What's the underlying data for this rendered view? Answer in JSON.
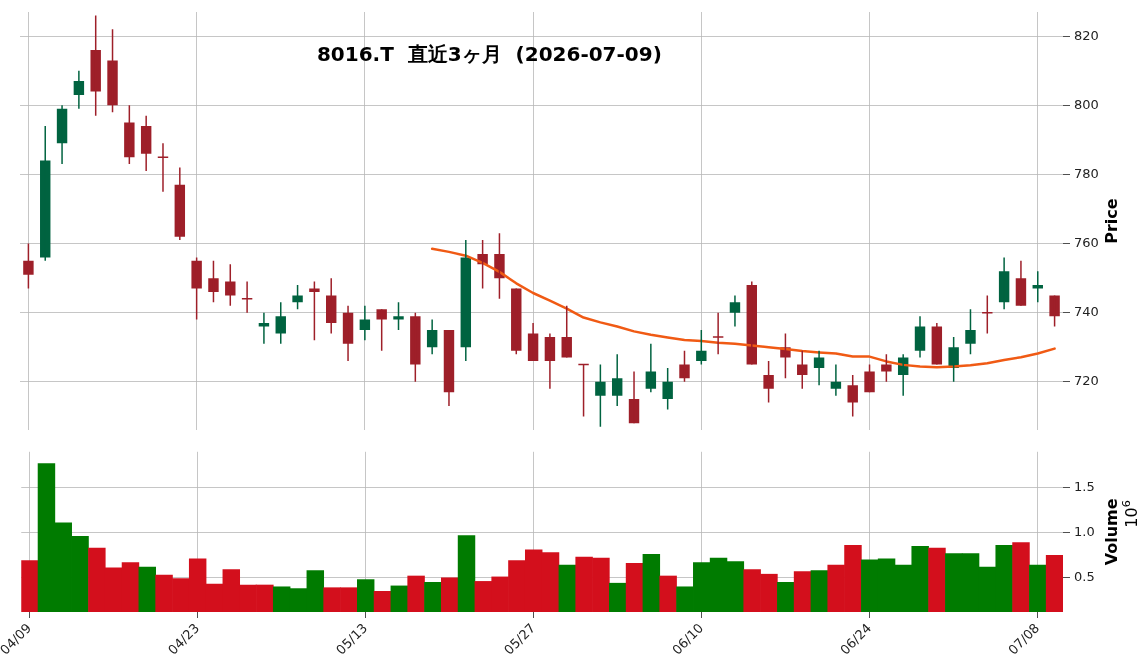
{
  "chart_data": [
    {
      "type": "candlestick",
      "title": "8016.T  直近3ヶ月  (2026-07-09)",
      "ylabel": "Price",
      "tick_labels": "y",
      "grid": true,
      "categories": [
        null,
        null,
        null,
        null,
        null,
        null,
        null,
        null,
        null,
        null,
        null,
        null,
        null,
        null,
        null,
        null,
        null,
        null,
        null,
        null,
        null,
        null,
        null,
        null,
        null,
        null,
        null,
        null,
        null,
        null,
        null,
        null,
        null,
        null,
        null,
        null,
        null,
        null,
        null,
        null,
        null,
        null,
        null,
        null,
        null,
        null,
        null,
        null,
        null,
        null,
        null,
        null,
        null,
        null,
        null,
        null,
        null,
        null,
        null,
        null,
        null,
        null
      ],
      "ohlc": [
        [
          755,
          760,
          747,
          751
        ],
        [
          756,
          794,
          755,
          784
        ],
        [
          789,
          800,
          783,
          799
        ],
        [
          803,
          810,
          799,
          807
        ],
        [
          816,
          826,
          797,
          804
        ],
        [
          813,
          822,
          798,
          800
        ],
        [
          795,
          800,
          783,
          785
        ],
        [
          794,
          797,
          781,
          786
        ],
        [
          785,
          789,
          775,
          785
        ],
        [
          777,
          782,
          761,
          762
        ],
        [
          755,
          756,
          738,
          747
        ],
        [
          750,
          755,
          743,
          746
        ],
        [
          749,
          754,
          742,
          745
        ],
        [
          744,
          749,
          740,
          744
        ],
        [
          736,
          740,
          731,
          737
        ],
        [
          734,
          743,
          731,
          739
        ],
        [
          743,
          748,
          741,
          745
        ],
        [
          747,
          749,
          732,
          746
        ],
        [
          745,
          750,
          734,
          737
        ],
        [
          740,
          742,
          726,
          731
        ],
        [
          735,
          742,
          732,
          738
        ],
        [
          741,
          741,
          729,
          738
        ],
        [
          738,
          743,
          735,
          739
        ],
        [
          739,
          740,
          720,
          725
        ],
        [
          730,
          738,
          728,
          735
        ],
        [
          735,
          735,
          713,
          717
        ],
        [
          730,
          761,
          726,
          756
        ],
        [
          757,
          761,
          747,
          754
        ],
        [
          757,
          763,
          744,
          750
        ],
        [
          747,
          747,
          728,
          729
        ],
        [
          734,
          737,
          726,
          726
        ],
        [
          733,
          734,
          718,
          726
        ],
        [
          733,
          742,
          727,
          727
        ],
        [
          725,
          725,
          710,
          725
        ],
        [
          716,
          725,
          707,
          720
        ],
        [
          716,
          728,
          713,
          721
        ],
        [
          715,
          723,
          708,
          708
        ],
        [
          718,
          731,
          717,
          723
        ],
        [
          715,
          724,
          712,
          720
        ],
        [
          725,
          729,
          720,
          721
        ],
        [
          726,
          735,
          725,
          729
        ],
        [
          733,
          740,
          728,
          733
        ],
        [
          740,
          745,
          736,
          743
        ],
        [
          748,
          749,
          725,
          725
        ],
        [
          722,
          726,
          714,
          718
        ],
        [
          730,
          734,
          721,
          727
        ],
        [
          725,
          729,
          718,
          722
        ],
        [
          724,
          729,
          719,
          727
        ],
        [
          718,
          725,
          716,
          720
        ],
        [
          719,
          722,
          710,
          714
        ],
        [
          723,
          725,
          717,
          717
        ],
        [
          725,
          728,
          720,
          723
        ],
        [
          722,
          728,
          716,
          727
        ],
        [
          729,
          739,
          727,
          736
        ],
        [
          736,
          737,
          725,
          725
        ],
        [
          724,
          733,
          720,
          730
        ],
        [
          731,
          741,
          728,
          735
        ],
        [
          740,
          745,
          734,
          740
        ],
        [
          743,
          756,
          741,
          752
        ],
        [
          750,
          755,
          742,
          742
        ],
        [
          747,
          752,
          743,
          748
        ],
        [
          745,
          745,
          736,
          739
        ]
      ],
      "colors": [
        "#9e1f29",
        "#006340",
        "#006340",
        "#006340",
        "#9e1f29",
        "#9e1f29",
        "#9e1f29",
        "#9e1f29",
        "#9e1f29",
        "#9e1f29",
        "#9e1f29",
        "#9e1f29",
        "#9e1f29",
        "#9e1f29",
        "#006340",
        "#006340",
        "#006340",
        "#9e1f29",
        "#9e1f29",
        "#9e1f29",
        "#006340",
        "#9e1f29",
        "#006340",
        "#9e1f29",
        "#006340",
        "#9e1f29",
        "#006340",
        "#9e1f29",
        "#9e1f29",
        "#9e1f29",
        "#9e1f29",
        "#9e1f29",
        "#9e1f29",
        "#9e1f29",
        "#006340",
        "#006340",
        "#9e1f29",
        "#006340",
        "#006340",
        "#9e1f29",
        "#006340",
        "#9e1f29",
        "#006340",
        "#9e1f29",
        "#9e1f29",
        "#9e1f29",
        "#9e1f29",
        "#006340",
        "#006340",
        "#9e1f29",
        "#9e1f29",
        "#9e1f29",
        "#006340",
        "#006340",
        "#9e1f29",
        "#006340",
        "#006340",
        "#9e1f29",
        "#006340",
        "#9e1f29",
        "#006340",
        "#9e1f29"
      ],
      "series": [
        {
          "type": "line",
          "color": "#f05a14",
          "values": [
            null,
            null,
            null,
            null,
            null,
            null,
            null,
            null,
            null,
            null,
            null,
            null,
            null,
            null,
            null,
            null,
            null,
            null,
            null,
            null,
            null,
            null,
            null,
            null,
            758.5,
            757.6,
            756.5,
            754.4,
            751.8,
            748.5,
            745.7,
            743.5,
            741.2,
            738.6,
            737.2,
            736,
            734.6,
            733.6,
            732.8,
            732.1,
            731.8,
            731.3,
            731,
            730.5,
            730,
            729.5,
            728.9,
            728.5,
            728.2,
            727.3,
            727.3,
            725.9,
            724.9,
            724.4,
            724.2,
            724.4,
            724.8,
            725.4,
            726.3,
            727.1,
            728.2,
            729.6
          ]
        }
      ],
      "ylim": [
        706,
        827
      ],
      "yticks": [
        720,
        740,
        760,
        780,
        800,
        820
      ]
    },
    {
      "type": "bar",
      "ylabel": "Volume",
      "annotations": [
        "10$^{6}$"
      ],
      "grid": true,
      "categories": [
        "04/09",
        null,
        null,
        null,
        null,
        null,
        null,
        null,
        null,
        null,
        "04/23",
        null,
        null,
        null,
        null,
        null,
        null,
        null,
        null,
        null,
        "05/13",
        null,
        null,
        null,
        null,
        null,
        null,
        null,
        null,
        null,
        "05/27",
        null,
        null,
        null,
        null,
        null,
        null,
        null,
        null,
        null,
        "06/10",
        null,
        null,
        null,
        null,
        null,
        null,
        null,
        null,
        null,
        "06/24",
        null,
        null,
        null,
        null,
        null,
        null,
        null,
        null,
        null,
        "07/08",
        null
      ],
      "values": [
        0.69,
        1.77,
        1.11,
        0.96,
        0.83,
        0.61,
        0.67,
        0.62,
        0.53,
        0.49,
        0.71,
        0.43,
        0.59,
        0.42,
        0.42,
        0.4,
        0.38,
        0.58,
        0.39,
        0.39,
        0.48,
        0.35,
        0.41,
        0.52,
        0.45,
        0.5,
        0.97,
        0.46,
        0.51,
        0.69,
        0.81,
        0.78,
        0.64,
        0.73,
        0.72,
        0.44,
        0.66,
        0.76,
        0.52,
        0.4,
        0.67,
        0.72,
        0.68,
        0.59,
        0.54,
        0.45,
        0.57,
        0.58,
        0.64,
        0.86,
        0.7,
        0.71,
        0.64,
        0.85,
        0.83,
        0.77,
        0.77,
        0.62,
        0.86,
        0.89,
        0.64,
        0.75
      ],
      "colors": [
        "#d30f1c",
        "#007b00",
        "#007b00",
        "#007b00",
        "#d30f1c",
        "#d30f1c",
        "#d30f1c",
        "#007b00",
        "#d30f1c",
        "#d30f1c",
        "#d30f1c",
        "#d30f1c",
        "#d30f1c",
        "#d30f1c",
        "#d30f1c",
        "#007b00",
        "#007b00",
        "#007b00",
        "#d30f1c",
        "#d30f1c",
        "#007b00",
        "#d30f1c",
        "#007b00",
        "#d30f1c",
        "#007b00",
        "#d30f1c",
        "#007b00",
        "#d30f1c",
        "#d30f1c",
        "#d30f1c",
        "#d30f1c",
        "#d30f1c",
        "#007b00",
        "#d30f1c",
        "#d30f1c",
        "#007b00",
        "#d30f1c",
        "#007b00",
        "#d30f1c",
        "#007b00",
        "#007b00",
        "#007b00",
        "#007b00",
        "#d30f1c",
        "#d30f1c",
        "#007b00",
        "#d30f1c",
        "#007b00",
        "#d30f1c",
        "#d30f1c",
        "#007b00",
        "#007b00",
        "#007b00",
        "#007b00",
        "#d30f1c",
        "#007b00",
        "#007b00",
        "#007b00",
        "#007b00",
        "#d30f1c",
        "#007b00",
        "#d30f1c"
      ],
      "ylim": [
        0.12,
        1.9
      ],
      "yticks": [
        0.5,
        {
          "value": 1,
          "label": "1.0"
        },
        1.5
      ]
    }
  ]
}
